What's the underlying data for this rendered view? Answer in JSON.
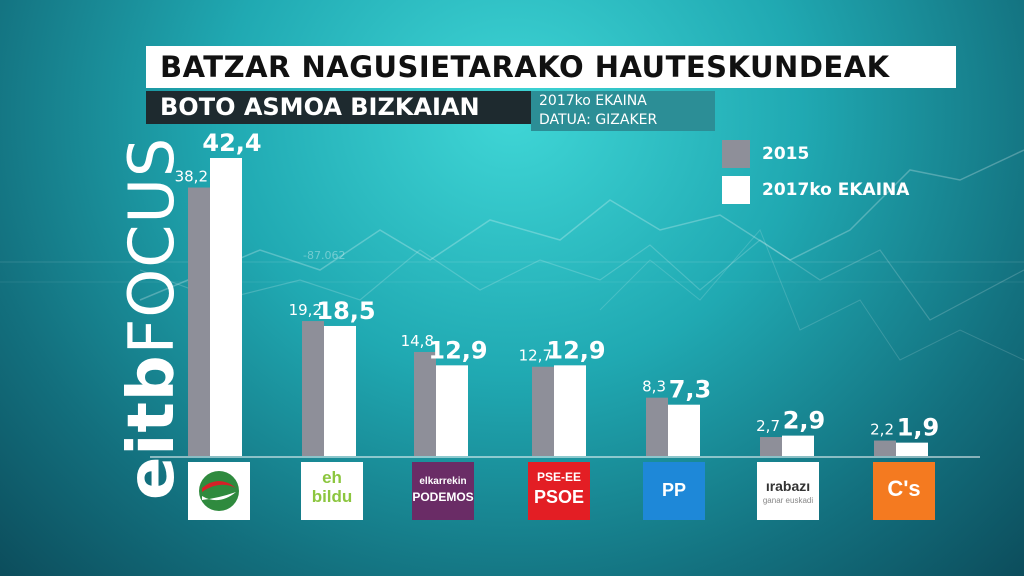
{
  "header": {
    "title": "BATZAR NAGUSIETARAKO HAUTESKUNDEAK",
    "subtitle": "BOTO ASMOA BIZKAIAN",
    "date": "2017ko EKAINA",
    "source": "DATUA: GIZAKER"
  },
  "branding": {
    "prefix": "eitb",
    "suffix": "FOCUS"
  },
  "background_number": "-87.062",
  "colors": {
    "series_2015": "#8e8f99",
    "series_2017": "#ffffff",
    "label_text": "#ffffff"
  },
  "party_logos": [
    {
      "icon": "pnv-logo",
      "texts": []
    },
    {
      "icon": "eh-bildu-logo",
      "texts": [
        "eh",
        "bildu"
      ]
    },
    {
      "icon": "elkarrekin-podemos-logo",
      "texts": [
        "elkarrekin",
        "PODEMOS"
      ]
    },
    {
      "icon": "pse-ee-psoe-logo",
      "texts": [
        "PSE-EE",
        "PSOE"
      ]
    },
    {
      "icon": "pp-logo",
      "texts": [
        "PP"
      ]
    },
    {
      "icon": "irabazi-logo",
      "texts": [
        "ırabazı",
        "ganar euskadi"
      ]
    },
    {
      "icon": "ciudadanos-logo",
      "texts": [
        "C's"
      ]
    }
  ],
  "chart_data": {
    "type": "bar",
    "categories": [
      "PNV",
      "EH Bildu",
      "Elkarrekin Podemos",
      "PSE-EE",
      "PP",
      "Irabazi",
      "Cs"
    ],
    "series": [
      {
        "name": "2015",
        "values": [
          38.2,
          19.2,
          14.8,
          12.7,
          8.3,
          2.7,
          2.2
        ],
        "labels": [
          "38,2",
          "19,2",
          "14,8",
          "12,7",
          "8,3",
          "2,7",
          "2,2"
        ]
      },
      {
        "name": "2017ko EKAINA",
        "values": [
          42.4,
          18.5,
          12.9,
          12.9,
          7.3,
          2.9,
          1.9
        ],
        "labels": [
          "42,4",
          "18,5",
          "12,9",
          "12,9",
          "7,3",
          "2,9",
          "1,9"
        ]
      }
    ],
    "ylim": [
      0,
      42.4
    ],
    "legend_position": "top-right",
    "grid": false
  }
}
